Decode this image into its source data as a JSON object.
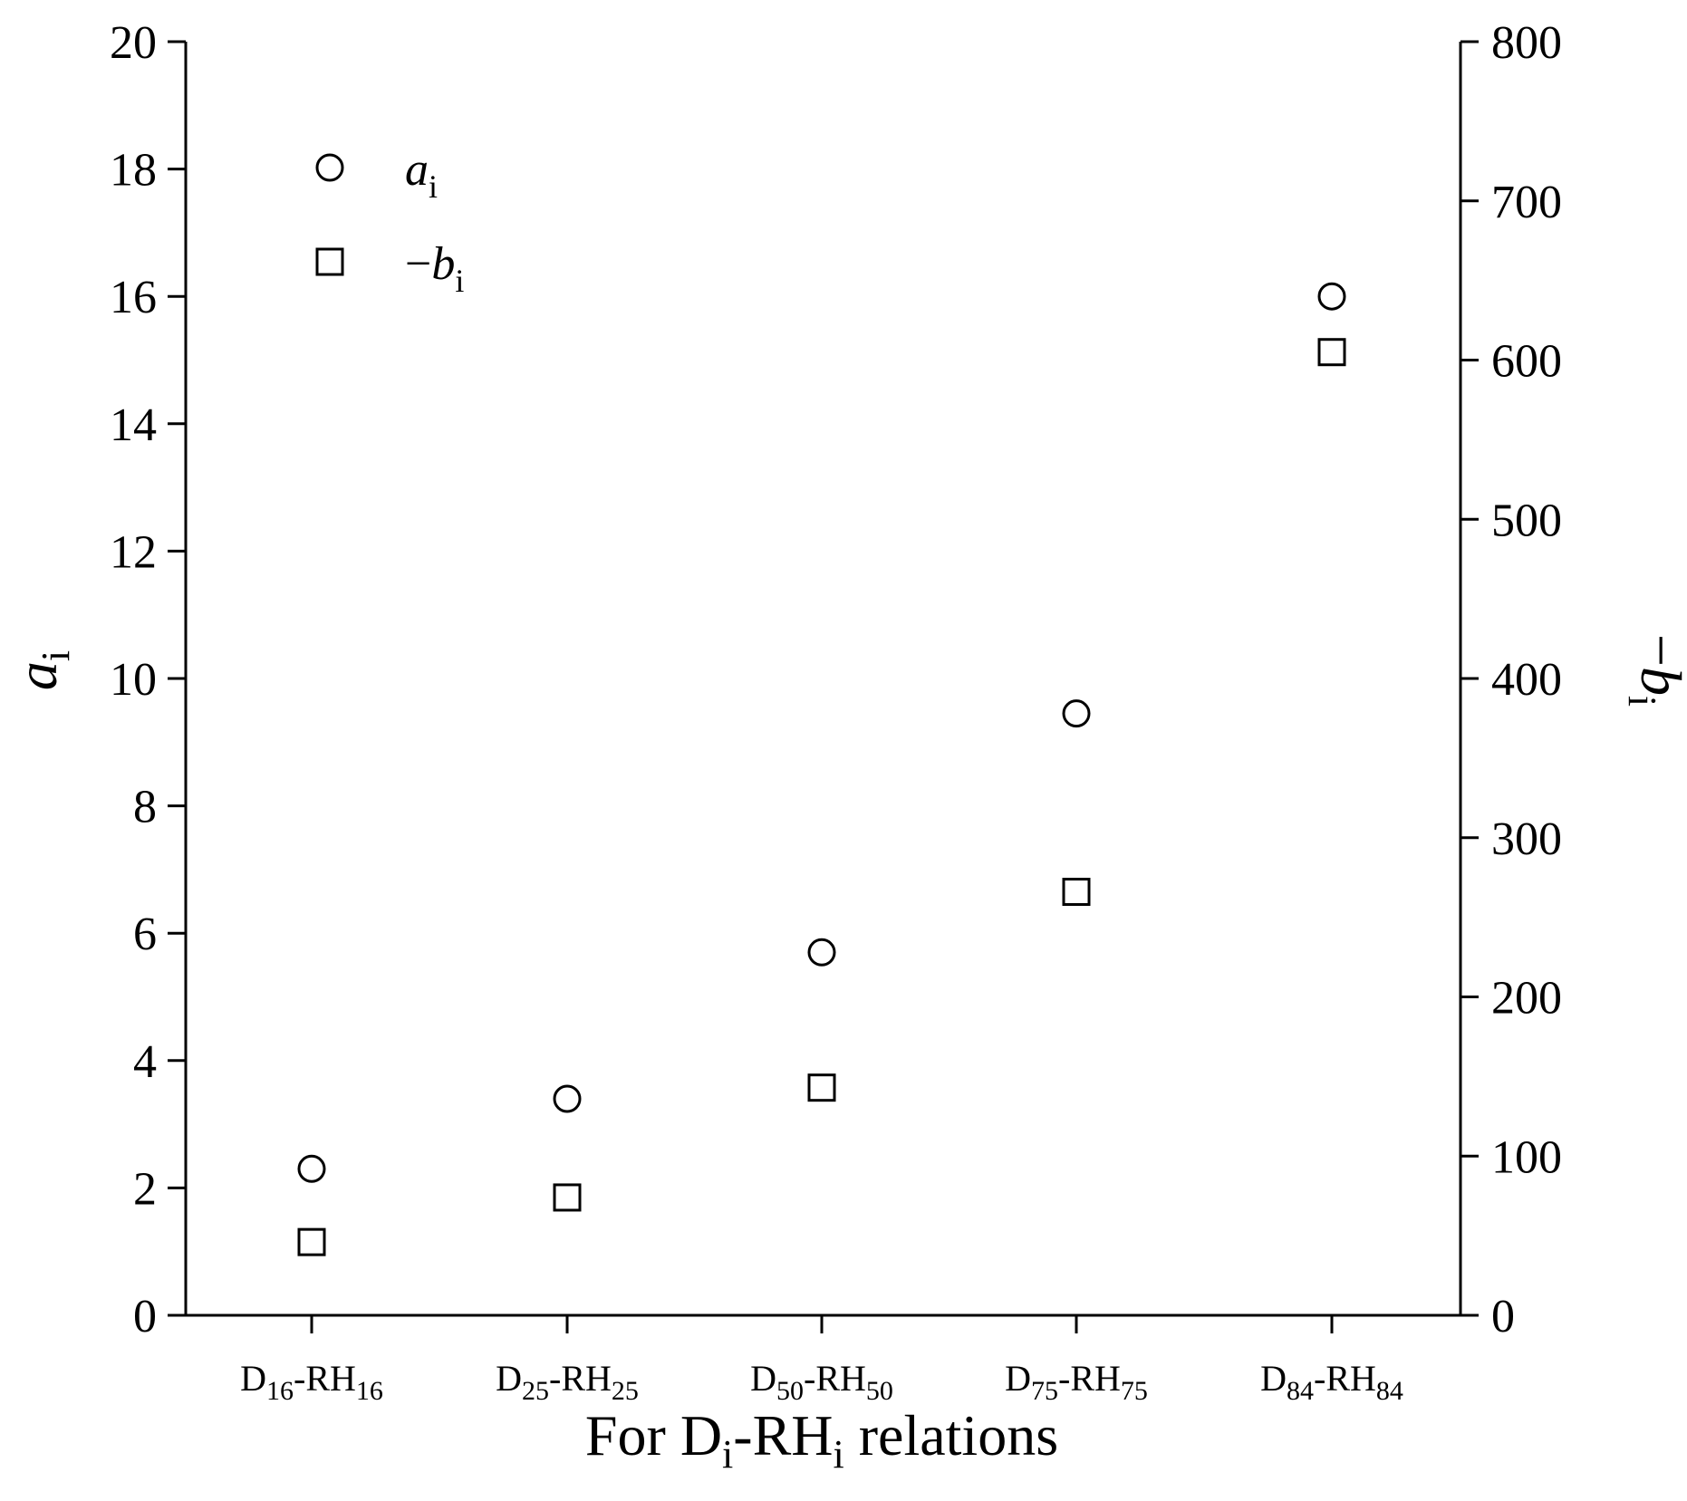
{
  "chart_data": {
    "type": "scatter",
    "title": "",
    "xlabel": {
      "main": "For D",
      "sub": "i",
      "mid": "-RH",
      "sub2": "i",
      "tail": " relations"
    },
    "ylabel_left": {
      "base": "a",
      "sub": "i"
    },
    "ylabel_right": {
      "prefix": "−",
      "base": "b",
      "sub": "i"
    },
    "categories": [
      {
        "pre": "D",
        "sub": "16",
        "mid": "-RH",
        "sub2": "16"
      },
      {
        "pre": "D",
        "sub": "25",
        "mid": "-RH",
        "sub2": "25"
      },
      {
        "pre": "D",
        "sub": "50",
        "mid": "-RH",
        "sub2": "50"
      },
      {
        "pre": "D",
        "sub": "75",
        "mid": "-RH",
        "sub2": "75"
      },
      {
        "pre": "D",
        "sub": "84",
        "mid": "-RH",
        "sub2": "84"
      }
    ],
    "ylim_left": [
      0,
      20
    ],
    "yticks_left": [
      "0",
      "2",
      "4",
      "6",
      "8",
      "10",
      "12",
      "14",
      "16",
      "18",
      "20"
    ],
    "ylim_right": [
      0,
      800
    ],
    "yticks_right": [
      "0",
      "100",
      "200",
      "300",
      "400",
      "500",
      "600",
      "700",
      "800"
    ],
    "series": [
      {
        "name": {
          "base": "a",
          "sub": "i"
        },
        "marker": "circle",
        "axis": "left",
        "values": [
          2.3,
          3.4,
          5.7,
          9.45,
          16.0
        ]
      },
      {
        "name": {
          "prefix": "−",
          "base": "b",
          "sub": "i"
        },
        "marker": "square",
        "axis": "right",
        "values": [
          46,
          74,
          143,
          266,
          605
        ]
      }
    ],
    "legend_position": "top-left",
    "grid": false
  }
}
